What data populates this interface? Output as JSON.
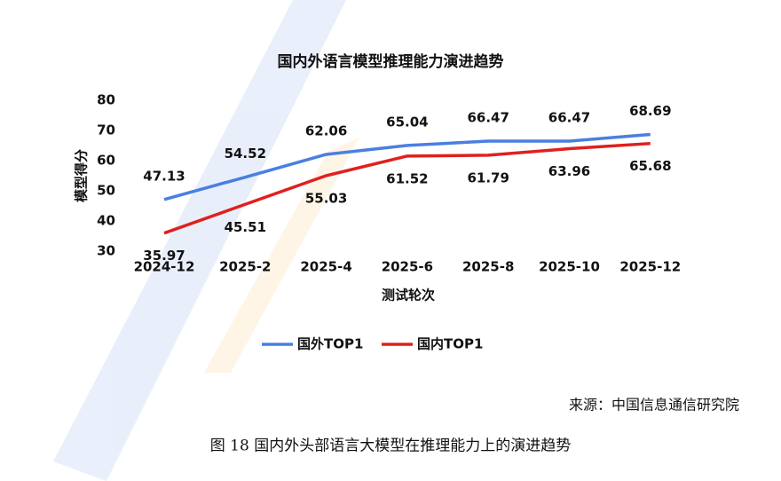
{
  "chart_data": {
    "type": "line",
    "title": "国内外语言模型推理能力演进趋势",
    "y_label": "模型得分",
    "x_label": "测试轮次",
    "categories": [
      "2024-12",
      "2025-2",
      "2025-4",
      "2025-6",
      "2025-8",
      "2025-10",
      "2025-12"
    ],
    "series": [
      {
        "name": "国外TOP1",
        "color": "#4a7fe0",
        "values": [
          47.13,
          54.52,
          62.06,
          65.04,
          66.47,
          66.47,
          68.69
        ]
      },
      {
        "name": "国内TOP1",
        "color": "#e0201e",
        "values": [
          35.97,
          45.51,
          55.03,
          61.52,
          61.79,
          63.96,
          65.68
        ]
      }
    ],
    "ylim": [
      30,
      80
    ],
    "yticks": [
      30,
      40,
      50,
      60,
      70,
      80
    ],
    "grid": false
  },
  "source": "来源：中国信息通信研究院",
  "caption": "图 18 国内外头部语言大模型在推理能力上的演进趋势"
}
